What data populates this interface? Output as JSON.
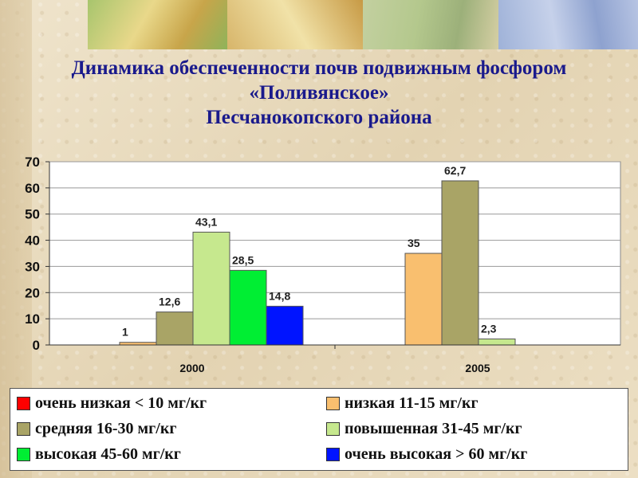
{
  "title": {
    "line1": "Динамика обеспеченности почв подвижным фосфором",
    "line2": "«Поливянское»",
    "line3": "Песчанокопского  района"
  },
  "chart_data": {
    "type": "bar",
    "categories": [
      "2000",
      "2005"
    ],
    "ylim": [
      0,
      70
    ],
    "yticks": [
      "0",
      "10",
      "20",
      "30",
      "40",
      "50",
      "60",
      "70"
    ],
    "grid": true,
    "legend_position": "bottom",
    "series": [
      {
        "name": "очень низкая < 10 мг/кг",
        "color": "#ff0000",
        "values": [
          null,
          null
        ],
        "labels": [
          "",
          ""
        ]
      },
      {
        "name": "низкая 11-15 мг/кг",
        "color": "#f9bf6f",
        "values": [
          1,
          35
        ],
        "labels": [
          "1",
          "35"
        ]
      },
      {
        "name": "средняя 16-30 мг/кг",
        "color": "#a9a466",
        "values": [
          12.6,
          62.7
        ],
        "labels": [
          "12,6",
          "62,7"
        ]
      },
      {
        "name": "повышенная 31-45 мг/кг",
        "color": "#c6e88e",
        "values": [
          43.1,
          2.3
        ],
        "labels": [
          "43,1",
          "2,3"
        ]
      },
      {
        "name": "высокая 45-60 мг/кг",
        "color": "#00ee33",
        "values": [
          28.5,
          null
        ],
        "labels": [
          "28,5",
          ""
        ]
      },
      {
        "name": "очень высокая > 60 мг/кг",
        "color": "#0014ff",
        "values": [
          14.8,
          null
        ],
        "labels": [
          "14,8",
          ""
        ]
      }
    ]
  }
}
